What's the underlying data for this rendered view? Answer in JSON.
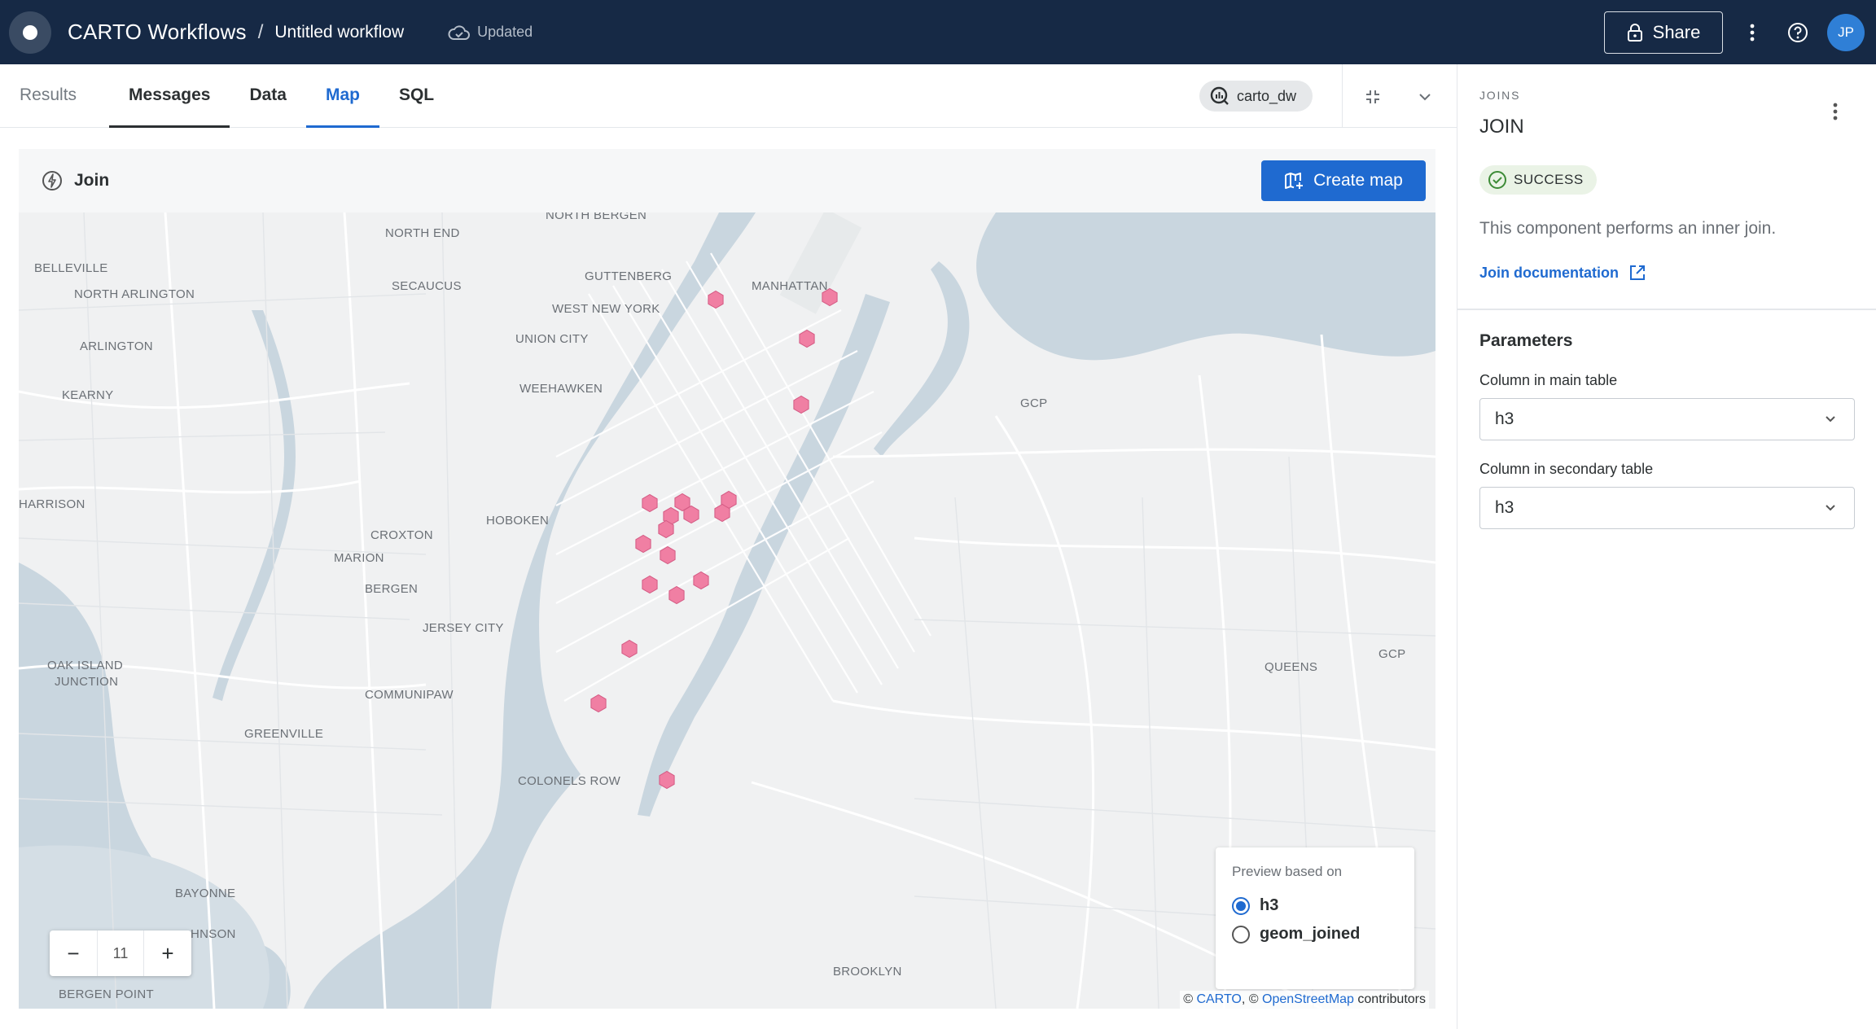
{
  "header": {
    "app_title": "CARTO Workflows",
    "separator": "/",
    "workflow_title": "Untitled workflow",
    "status": "Updated",
    "share_label": "Share",
    "avatar_initials": "JP"
  },
  "tabs": [
    {
      "label": "Results"
    },
    {
      "label": "Messages"
    },
    {
      "label": "Data"
    },
    {
      "label": "Map"
    },
    {
      "label": "SQL"
    }
  ],
  "active_tab": "Map",
  "connection": "carto_dw",
  "map_panel": {
    "node_label": "Join",
    "create_map_label": "Create map",
    "zoom_level": "11",
    "zoom_out": "−",
    "zoom_in": "+",
    "legend_title": "Preview based on",
    "legend_options": [
      {
        "label": "h3",
        "selected": true
      },
      {
        "label": "geom_joined",
        "selected": false
      }
    ],
    "attribution": {
      "prefix1": "© ",
      "carto": "CARTO",
      "prefix2": ", © ",
      "osm": "OpenStreetMap",
      "suffix": " contributors"
    },
    "places": [
      "NORTH BERGEN",
      "NORTH END",
      "BELLEVILLE",
      "SECAUCUS",
      "GUTTENBERG",
      "MANHATTAN",
      "NORTH ARLINGTON",
      "WEST NEW YORK",
      "ARLINGTON",
      "UNION CITY",
      "KEARNY",
      "WEEHAWKEN",
      "GCP",
      "HARRISON",
      "HOBOKEN",
      "CROXTON",
      "MARION",
      "BERGEN",
      "JERSEY CITY",
      "OAK ISLAND",
      "JUNCTION",
      "QUEENS",
      "GCP",
      "COMMUNIPAW",
      "GREENVILLE",
      "COLONELS ROW",
      "BAYONNE",
      "HNSON",
      "BROOKLYN",
      "BERGEN POINT"
    ],
    "hex_color": "#f07fa3"
  },
  "right_panel": {
    "category": "JOINS",
    "title": "JOIN",
    "status": "SUCCESS",
    "description": "This component performs an inner join.",
    "doc_link": "Join documentation",
    "params_title": "Parameters",
    "fields": [
      {
        "label": "Column in main table",
        "value": "h3"
      },
      {
        "label": "Column in secondary table",
        "value": "h3"
      }
    ]
  }
}
